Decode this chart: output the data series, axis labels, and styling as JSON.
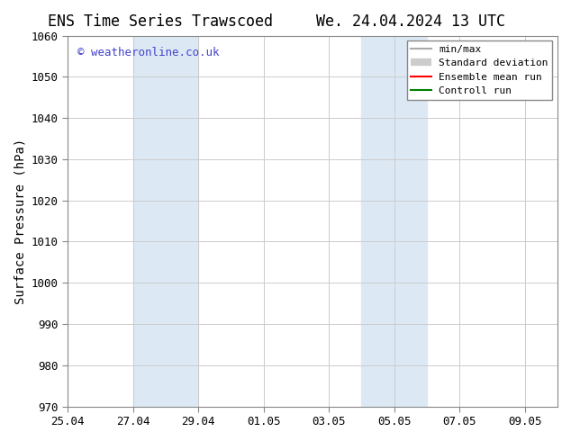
{
  "title_left": "ENS Time Series Trawscoed",
  "title_right": "We. 24.04.2024 13 UTC",
  "ylabel": "Surface Pressure (hPa)",
  "ylim": [
    970,
    1060
  ],
  "yticks": [
    970,
    980,
    990,
    1000,
    1010,
    1020,
    1030,
    1040,
    1050,
    1060
  ],
  "x_start": "2024-04-25",
  "x_end": "2024-05-10",
  "xtick_labels": [
    "25.04",
    "27.04",
    "29.04",
    "01.05",
    "03.05",
    "05.05",
    "07.05",
    "09.05"
  ],
  "xtick_dates": [
    "2024-04-25",
    "2024-04-27",
    "2024-04-29",
    "2024-05-01",
    "2024-05-03",
    "2024-05-05",
    "2024-05-07",
    "2024-05-09"
  ],
  "shaded_regions": [
    {
      "start": "2024-04-27",
      "end": "2024-04-29",
      "color": "#dce9f5"
    },
    {
      "start": "2024-05-04",
      "end": "2024-05-06",
      "color": "#dce9f5"
    }
  ],
  "watermark_text": "© weatheronline.co.uk",
  "watermark_color": "#4444cc",
  "background_color": "#ffffff",
  "grid_color": "#cccccc",
  "legend_items": [
    {
      "label": "min/max",
      "color": "#aaaaaa",
      "lw": 1.5,
      "ls": "-"
    },
    {
      "label": "Standard deviation",
      "color": "#cccccc",
      "lw": 6,
      "ls": "-"
    },
    {
      "label": "Ensemble mean run",
      "color": "#ff0000",
      "lw": 1.5,
      "ls": "-"
    },
    {
      "label": "Controll run",
      "color": "#008000",
      "lw": 1.5,
      "ls": "-"
    }
  ],
  "title_fontsize": 12,
  "axis_label_fontsize": 10,
  "tick_fontsize": 9,
  "legend_fontsize": 8,
  "watermark_fontsize": 9
}
